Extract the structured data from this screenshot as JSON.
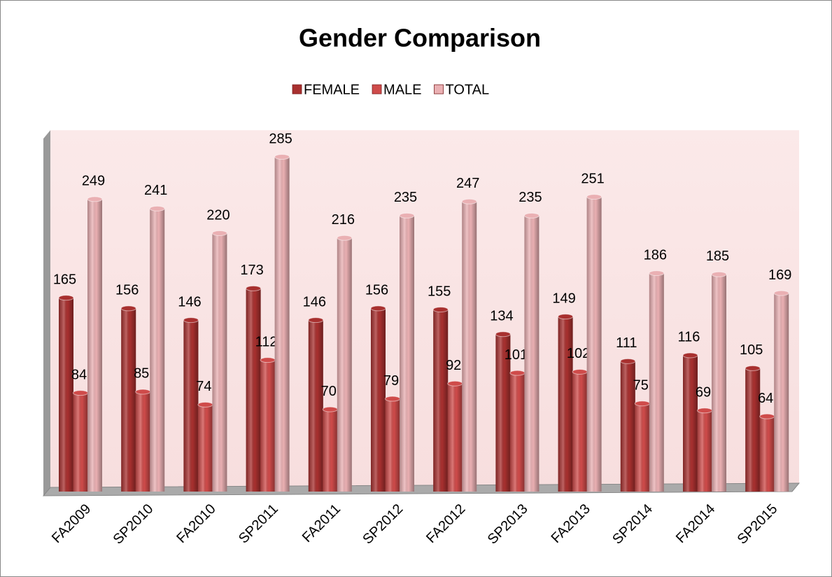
{
  "chart_data": {
    "type": "bar3d",
    "title": "Gender Comparison",
    "categories": [
      "FA2009",
      "SP2010",
      "FA2010",
      "SP2011",
      "FA2011",
      "SP2012",
      "FA2012",
      "SP2013",
      "FA2013",
      "SP2014",
      "FA2014",
      "SP2015"
    ],
    "series": [
      {
        "name": "FEMALE",
        "color": "#a8302f",
        "values": [
          165,
          156,
          146,
          173,
          146,
          156,
          155,
          134,
          149,
          111,
          116,
          105
        ]
      },
      {
        "name": "MALE",
        "color": "#cf4b4a",
        "values": [
          84,
          85,
          74,
          112,
          70,
          79,
          92,
          101,
          102,
          75,
          69,
          64
        ]
      },
      {
        "name": "TOTAL",
        "color": "#eab0b3",
        "values": [
          249,
          241,
          220,
          285,
          216,
          235,
          247,
          235,
          251,
          186,
          185,
          169
        ]
      }
    ],
    "ylim": [
      0,
      300
    ],
    "legend": "top"
  }
}
